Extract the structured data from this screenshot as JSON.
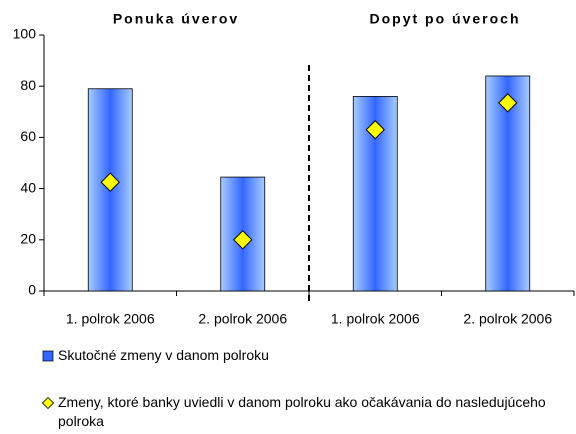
{
  "chart_data": {
    "type": "bar",
    "annotations": [
      "Ponuka úverov",
      "Dopyt po úveroch"
    ],
    "categories": [
      "1. polrok 2006",
      "2. polrok 2006",
      "1. polrok 2006",
      "2. polrok 2006"
    ],
    "series": [
      {
        "name": "Skutočné zmeny v danom polroku",
        "type": "bar",
        "color": "#3366ff",
        "values": [
          79,
          44.5,
          76,
          84
        ]
      },
      {
        "name": "Zmeny, ktoré banky uviedli v danom polroku ako očakávania do nasledujúceho polroka",
        "type": "diamond",
        "color": "#ffff00",
        "values": [
          42.5,
          20,
          63,
          73.5
        ]
      }
    ],
    "ylim": [
      0,
      100
    ],
    "yticks": [
      0,
      20,
      40,
      60,
      80,
      100
    ],
    "grid": false
  }
}
